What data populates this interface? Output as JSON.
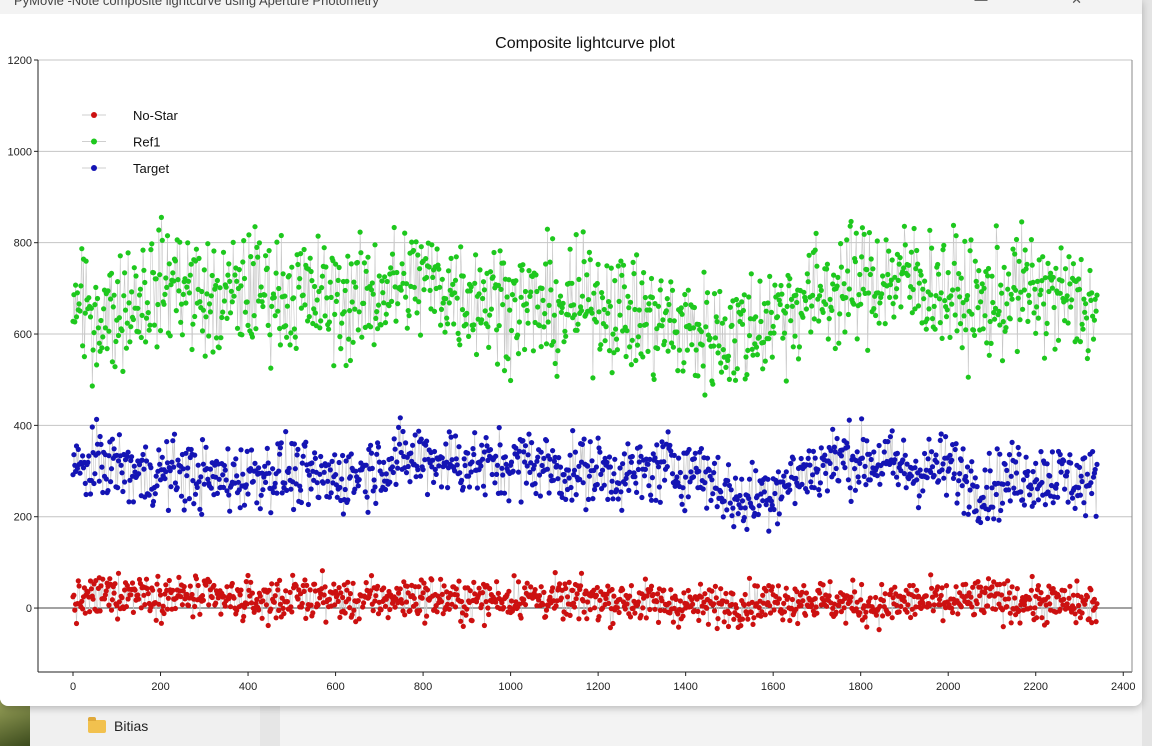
{
  "window": {
    "title": "PyMovie -Note composite lightcurve using Aperture Photometry",
    "controls": "—  ✕"
  },
  "explorer": {
    "folder_label": "Bitias"
  },
  "chart_data": {
    "type": "scatter",
    "title": "Composite lightcurve plot",
    "xlabel": "",
    "ylabel": "",
    "xlim": [
      -80,
      2420
    ],
    "ylim": [
      -140,
      1200
    ],
    "x_ticks": [
      0,
      200,
      400,
      600,
      800,
      1000,
      1200,
      1400,
      1600,
      1800,
      2000,
      2200,
      2400
    ],
    "y_ticks": [
      0,
      200,
      400,
      600,
      800,
      1000,
      1200
    ],
    "grid": "horizontal",
    "legend_position": "top-left",
    "connector_color": "#c8c8c8",
    "series": [
      {
        "name": "No-Star",
        "color": "#cc1010",
        "x": [
          0,
          80,
          160,
          240,
          320,
          400,
          480,
          560,
          640,
          720,
          800,
          880,
          960,
          1040,
          1120,
          1200,
          1280,
          1360,
          1440,
          1520,
          1600,
          1680,
          1760,
          1840,
          1920,
          2000,
          2080,
          2160,
          2240,
          2340
        ],
        "y": [
          10,
          30,
          35,
          25,
          20,
          15,
          20,
          25,
          15,
          20,
          25,
          15,
          20,
          25,
          15,
          20,
          15,
          10,
          5,
          10,
          15,
          20,
          10,
          5,
          15,
          10,
          20,
          15,
          10,
          5
        ],
        "spread": 45
      },
      {
        "name": "Ref1",
        "color": "#1ec81e",
        "x": [
          0,
          80,
          160,
          240,
          320,
          400,
          480,
          560,
          640,
          720,
          800,
          880,
          960,
          1040,
          1120,
          1200,
          1280,
          1360,
          1440,
          1520,
          1600,
          1680,
          1760,
          1840,
          1920,
          2000,
          2080,
          2160,
          2240,
          2340
        ],
        "y": [
          650,
          640,
          690,
          720,
          660,
          700,
          690,
          680,
          670,
          700,
          720,
          690,
          680,
          660,
          650,
          680,
          640,
          620,
          600,
          600,
          640,
          680,
          700,
          720,
          720,
          690,
          660,
          700,
          680,
          660
        ],
        "spread": 130
      },
      {
        "name": "Target",
        "color": "#1414b4",
        "x": [
          0,
          80,
          160,
          240,
          320,
          400,
          480,
          560,
          640,
          720,
          800,
          880,
          960,
          1040,
          1120,
          1200,
          1280,
          1360,
          1440,
          1520,
          1600,
          1680,
          1760,
          1840,
          1920,
          2000,
          2080,
          2160,
          2240,
          2340
        ],
        "y": [
          300,
          320,
          290,
          300,
          280,
          290,
          300,
          280,
          290,
          320,
          330,
          320,
          310,
          320,
          300,
          300,
          290,
          310,
          300,
          230,
          260,
          300,
          330,
          320,
          300,
          310,
          260,
          290,
          290,
          270
        ],
        "spread": 75
      }
    ]
  }
}
